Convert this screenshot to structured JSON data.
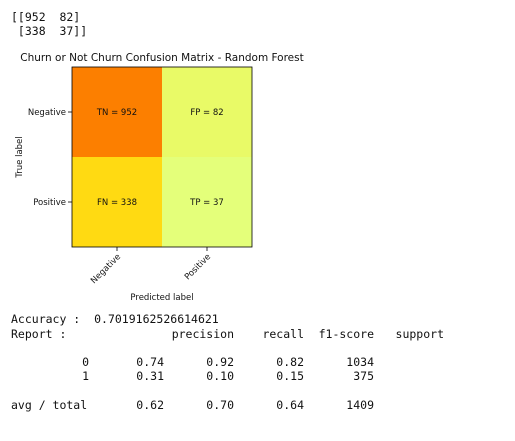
{
  "matrix_print": [
    "[[952  82]",
    " [338  37]]"
  ],
  "chart_data": {
    "type": "heatmap",
    "title": "Churn or Not Churn Confusion Matrix - Random Forest",
    "xlabel": "Predicted label",
    "ylabel": "True label",
    "x_categories": [
      "Negative",
      "Positive"
    ],
    "y_categories": [
      "Negative",
      "Positive"
    ],
    "values": [
      [
        952,
        82
      ],
      [
        338,
        37
      ]
    ],
    "cell_labels": [
      [
        "TN = 952",
        "FP = 82"
      ],
      [
        "FN = 338",
        "TP = 37"
      ]
    ],
    "colormap": "Wistia",
    "grid": false
  },
  "accuracy": {
    "label": "Accuracy :",
    "value": "0.7019162526614621"
  },
  "report": {
    "label": "Report :",
    "headers": [
      "precision",
      "recall",
      "f1-score",
      "support"
    ],
    "rows": [
      {
        "label": "0",
        "values": [
          "0.74",
          "0.92",
          "0.82",
          "1034"
        ]
      },
      {
        "label": "1",
        "values": [
          "0.31",
          "0.10",
          "0.15",
          "375"
        ]
      }
    ],
    "total": {
      "label": "avg / total",
      "values": [
        "0.62",
        "0.70",
        "0.64",
        "1409"
      ]
    }
  }
}
